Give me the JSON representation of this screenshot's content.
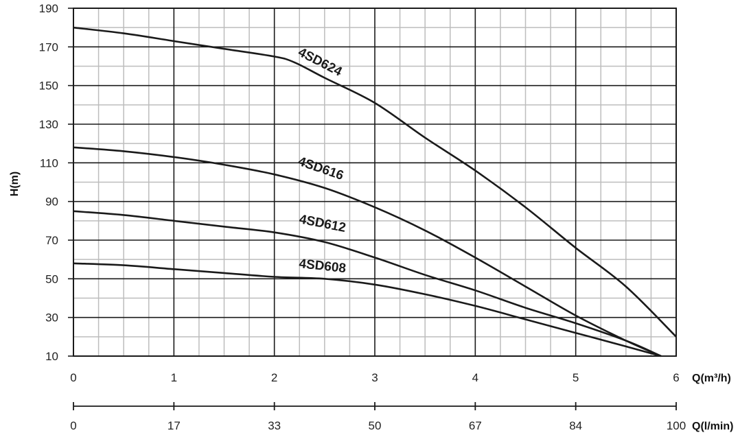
{
  "chart_data": {
    "type": "line",
    "title": "",
    "ylabel": "H(m)",
    "xlabel": "Q(m³/h)",
    "xlabel_secondary": "Q(l/min)",
    "xlim": [
      0,
      6
    ],
    "ylim": [
      10,
      190
    ],
    "x_ticks": [
      "0",
      "1",
      "2",
      "3",
      "4",
      "5",
      "6"
    ],
    "x_tick_values": [
      0,
      1,
      2,
      3,
      4,
      5,
      6
    ],
    "x_secondary_ticks": [
      "0",
      "17",
      "33",
      "50",
      "67",
      "84",
      "100"
    ],
    "y_ticks": [
      "10",
      "30",
      "50",
      "70",
      "90",
      "110",
      "130",
      "150",
      "170",
      "190"
    ],
    "y_tick_values": [
      10,
      30,
      50,
      70,
      90,
      110,
      130,
      150,
      170,
      190
    ],
    "grid": true,
    "colors": {
      "curve": "#1a1a1a",
      "major_grid": "#1a1a1a",
      "minor_grid": "#bdbdbd"
    },
    "series": [
      {
        "name": "4SD624",
        "x": [
          0,
          0.5,
          1,
          1.5,
          2,
          2.2,
          2.5,
          3,
          3.5,
          4,
          4.5,
          5,
          5.5,
          6
        ],
        "y": [
          180,
          177,
          173,
          169,
          165,
          162,
          154,
          141,
          123,
          106,
          87,
          66,
          46,
          20
        ]
      },
      {
        "name": "4SD616",
        "x": [
          0,
          0.5,
          1,
          1.5,
          2,
          2.5,
          3,
          3.5,
          4,
          4.5,
          5,
          5.5,
          5.85
        ],
        "y": [
          118,
          116,
          113,
          109,
          104,
          97,
          87,
          75,
          61,
          46,
          31,
          18,
          10
        ]
      },
      {
        "name": "4SD612",
        "x": [
          0,
          0.5,
          1,
          1.5,
          2,
          2.5,
          3,
          3.5,
          4,
          4.5,
          5,
          5.5,
          5.85
        ],
        "y": [
          85,
          83,
          80,
          77,
          74,
          69,
          61,
          52,
          44,
          35,
          27,
          18,
          10
        ]
      },
      {
        "name": "4SD608",
        "x": [
          0,
          0.5,
          1,
          1.5,
          2,
          2.5,
          3,
          3.5,
          4,
          4.5,
          5,
          5.5,
          5.85
        ],
        "y": [
          58,
          57,
          55,
          53,
          51,
          50,
          47,
          42,
          36,
          29,
          22,
          15,
          10
        ]
      }
    ]
  }
}
